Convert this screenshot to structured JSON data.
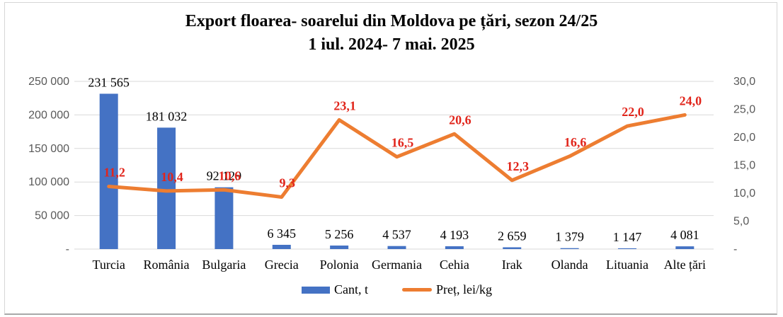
{
  "title": {
    "line1": "Export floarea- soarelui din Moldova pe țări, sezon 24/25",
    "line2": "1 iul. 2024- 7 mai. 2025"
  },
  "chart_data": {
    "type": "bar",
    "subtype": "combo-bar-line-dual-axis",
    "title": "Export floarea- soarelui din Moldova pe țări, sezon 24/25 1 iul. 2024- 7 mai. 2025",
    "categories": [
      "Turcia",
      "România",
      "Bulgaria",
      "Grecia",
      "Polonia",
      "Germania",
      "Cehia",
      "Irak",
      "Olanda",
      "Lituania",
      "Alte țări"
    ],
    "series": [
      {
        "name": "Cant, t",
        "type": "bar",
        "axis": "left",
        "color": "#4472C4",
        "values": [
          231565,
          181032,
          92129,
          6345,
          5256,
          4537,
          4193,
          2659,
          1379,
          1147,
          4081
        ],
        "labels": [
          "231 565",
          "181 032",
          "92 129",
          "6 345",
          "5 256",
          "4 537",
          "4 193",
          "2 659",
          "1 379",
          "1 147",
          "4 081"
        ],
        "label_color": "#000000"
      },
      {
        "name": "Preț, lei/kg",
        "type": "line",
        "axis": "right",
        "color": "#ED7D31",
        "values": [
          11.2,
          10.4,
          10.6,
          9.3,
          23.1,
          16.5,
          20.6,
          12.3,
          16.6,
          22.0,
          24.0
        ],
        "labels": [
          "11,2",
          "10,4",
          "10,6",
          "9,3",
          "23,1",
          "16,5",
          "20,6",
          "12,3",
          "16,6",
          "22,0",
          "24,0"
        ],
        "label_color": "#E1251B"
      }
    ],
    "axes": {
      "left": {
        "min": 0,
        "max": 250000,
        "ticks": [
          "250 000",
          "200 000",
          "150 000",
          "100 000",
          "50 000",
          "-"
        ]
      },
      "right": {
        "min": 0,
        "max": 30,
        "ticks": [
          "30,0",
          "25,0",
          "20,0",
          "15,0",
          "10,0",
          "5,0",
          "-"
        ]
      }
    },
    "grid": true,
    "gridline_color": "#D9D9D9",
    "legend_position": "bottom"
  }
}
